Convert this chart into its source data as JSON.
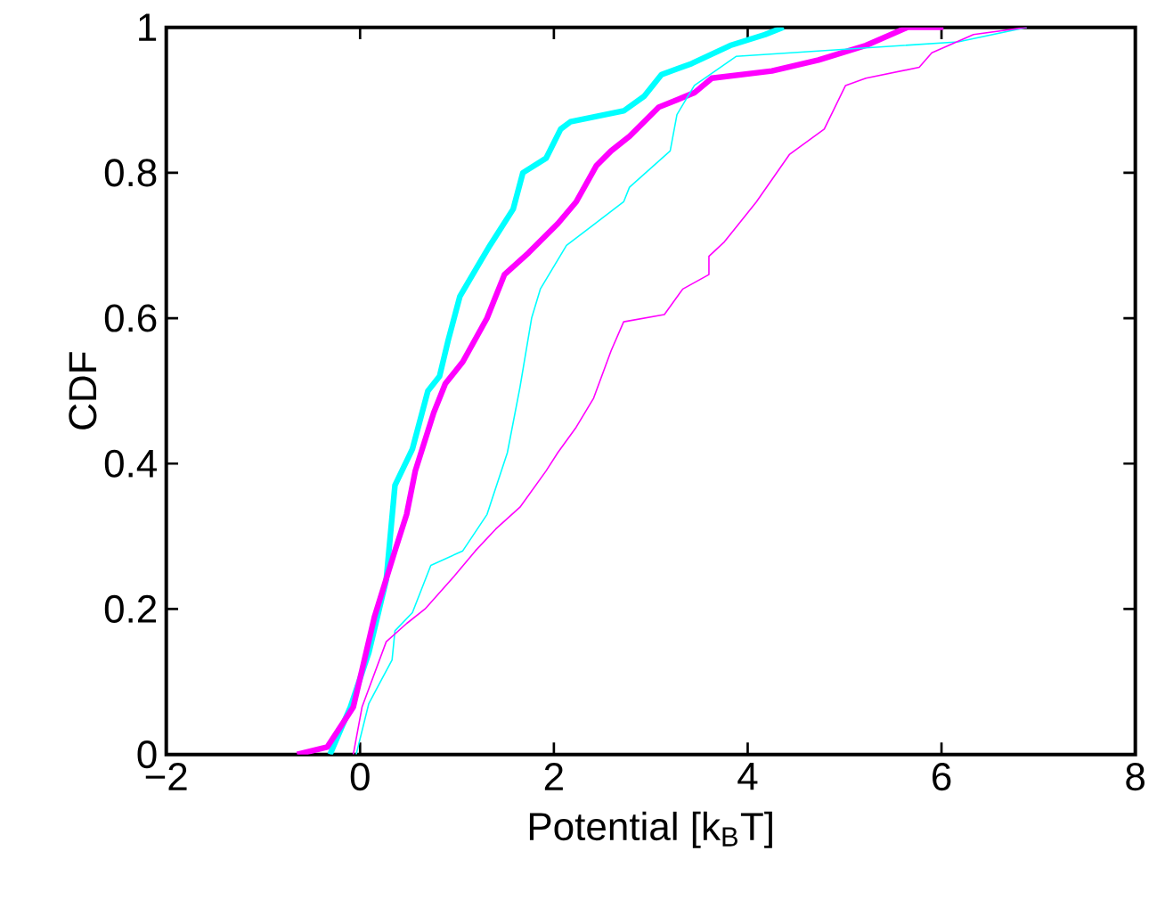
{
  "chart_data": {
    "type": "line",
    "xlabel": "Potential [k$_{B}$T]",
    "ylabel": "CDF",
    "xlim": [
      -2,
      8
    ],
    "ylim": [
      0,
      1
    ],
    "xticks": [
      {
        "value": -2,
        "label": "−2"
      },
      0,
      2,
      4,
      6,
      8
    ],
    "yticks": [
      0,
      0.2,
      0.4,
      0.6,
      0.8,
      1
    ],
    "grid": false,
    "marker": "none",
    "line_style": "solid",
    "series": [
      {
        "color": "#00ffff",
        "x": [
          -0.31,
          -0.1,
          0.09,
          0.27,
          0.36,
          0.54,
          0.7,
          0.82,
          0.91,
          1.03,
          1.25,
          1.34,
          1.58,
          1.68,
          1.92,
          2.07,
          2.17,
          2.72,
          2.93,
          3.11,
          3.42,
          3.82,
          4.18,
          4.37
        ],
        "values": [
          0,
          0.065,
          0.14,
          0.24,
          0.37,
          0.42,
          0.5,
          0.52,
          0.57,
          0.63,
          0.68,
          0.7,
          0.75,
          0.8,
          0.82,
          0.86,
          0.87,
          0.885,
          0.905,
          0.935,
          0.95,
          0.975,
          0.99,
          1
        ]
      },
      {
        "color": "#ff00ff",
        "x": [
          -0.65,
          -0.34,
          -0.07,
          0.15,
          0.36,
          0.48,
          0.57,
          0.76,
          0.88,
          1.06,
          1.31,
          1.49,
          1.74,
          2.04,
          2.23,
          2.44,
          2.59,
          2.78,
          3.08,
          3.45,
          3.63,
          4.25,
          4.73,
          5.22,
          5.65,
          6.02
        ],
        "values": [
          0,
          0.01,
          0.065,
          0.19,
          0.28,
          0.33,
          0.39,
          0.47,
          0.51,
          0.54,
          0.6,
          0.66,
          0.69,
          0.73,
          0.76,
          0.81,
          0.83,
          0.85,
          0.89,
          0.91,
          0.93,
          0.94,
          0.955,
          0.975,
          1,
          1
        ]
      },
      {
        "color": "#00ffff",
        "x": [
          -0.04,
          0.09,
          0.33,
          0.36,
          0.54,
          0.73,
          1.06,
          1.31,
          1.52,
          1.65,
          1.77,
          1.86,
          2.13,
          2.72,
          2.78,
          3.2,
          3.27,
          3.45,
          3.88,
          6.17,
          6.88
        ],
        "values": [
          0,
          0.07,
          0.13,
          0.17,
          0.195,
          0.26,
          0.28,
          0.33,
          0.415,
          0.505,
          0.6,
          0.64,
          0.7,
          0.76,
          0.78,
          0.83,
          0.88,
          0.92,
          0.96,
          0.98,
          1
        ]
      },
      {
        "color": "#ff00ff",
        "x": [
          -0.07,
          0.02,
          0.27,
          0.48,
          0.67,
          0.97,
          1.19,
          1.4,
          1.65,
          1.92,
          2.04,
          2.23,
          2.41,
          2.59,
          2.72,
          3.14,
          3.33,
          3.6,
          3.6,
          3.76,
          4.09,
          4.43,
          4.79,
          5.01,
          5.22,
          5.77,
          5.9,
          6.33,
          6.88
        ],
        "values": [
          0,
          0.065,
          0.155,
          0.18,
          0.2,
          0.245,
          0.28,
          0.31,
          0.34,
          0.39,
          0.415,
          0.45,
          0.49,
          0.555,
          0.595,
          0.605,
          0.64,
          0.66,
          0.685,
          0.705,
          0.76,
          0.825,
          0.86,
          0.92,
          0.93,
          0.945,
          0.965,
          0.99,
          1
        ]
      }
    ]
  }
}
